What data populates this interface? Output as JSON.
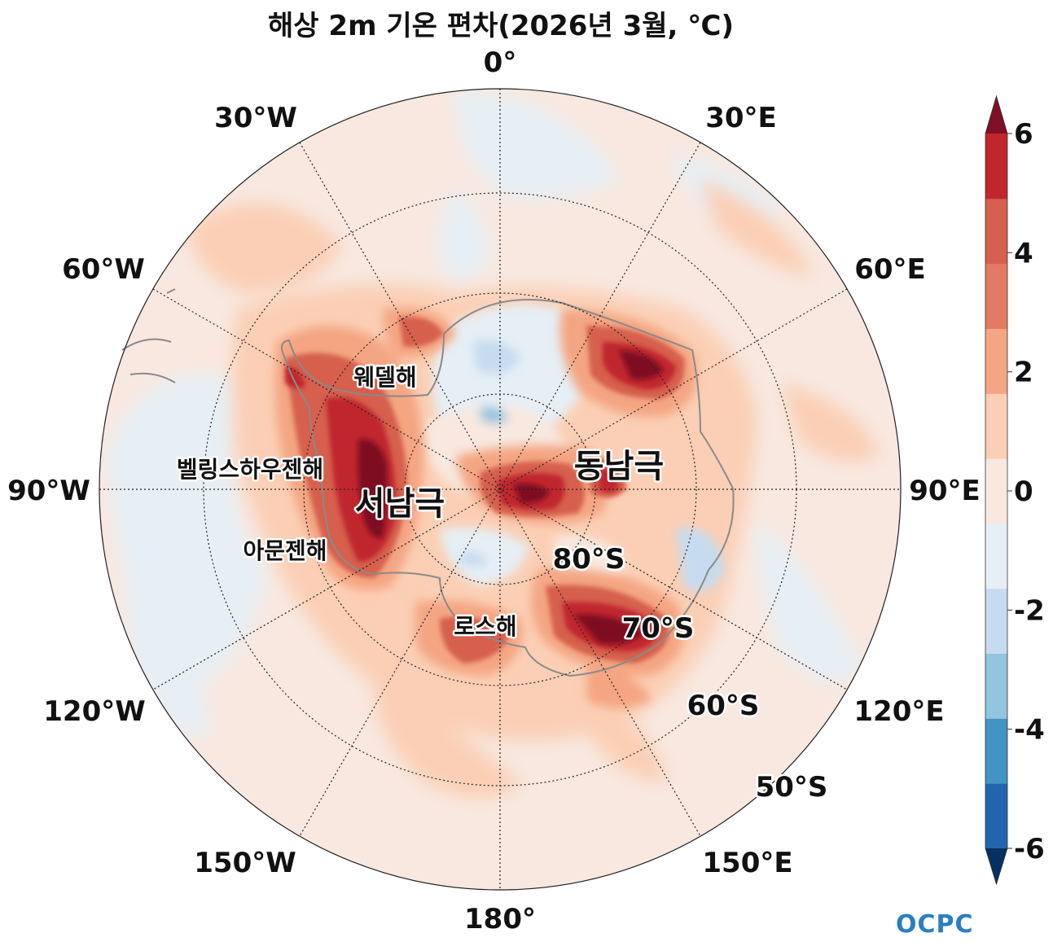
{
  "title": "해상 2m 기온 편차(2026년 3월, ℃)",
  "longitude_labels": {
    "lon_0": "0°",
    "lon_30e": "30°E",
    "lon_60e": "60°E",
    "lon_90e": "90°E",
    "lon_120e": "120°E",
    "lon_150e": "150°E",
    "lon_180": "180°",
    "lon_150w": "150°W",
    "lon_120w": "120°W",
    "lon_90w": "90°W",
    "lon_60w": "60°W",
    "lon_30w": "30°W"
  },
  "latitude_labels": {
    "lat_80s": "80°S",
    "lat_70s": "70°S",
    "lat_60s": "60°S",
    "lat_50s": "50°S"
  },
  "region_labels": {
    "weddell": "웨델해",
    "bellingshausen": "벨링스하우젠해",
    "amundsen": "아문젠해",
    "ross": "로스해",
    "west_antarctica": "서남극",
    "east_antarctica": "동남극"
  },
  "colorbar": {
    "ticks": [
      "6",
      "4",
      "2",
      "0",
      "-2",
      "-4",
      "-6"
    ],
    "colors": [
      "#053061",
      "#2166ac",
      "#4393c3",
      "#92c5de",
      "#c6dbef",
      "#e6eff5",
      "#f8e8e0",
      "#fbcfb5",
      "#f4a582",
      "#e27b62",
      "#d6604d",
      "#c0272d",
      "#7f0f24"
    ],
    "extend": "both"
  },
  "logo": "OCPC"
}
